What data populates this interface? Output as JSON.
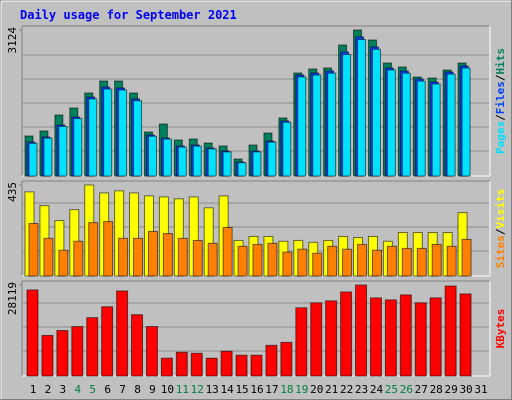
{
  "chart_data": [
    {
      "type": "bar",
      "title": "Daily usage for September 2021",
      "legend_separator": "/",
      "ylim": [
        0,
        3124
      ],
      "yticks": [
        3124
      ],
      "series": [
        {
          "name": "Hits",
          "color": "#00805c",
          "values": [
            856,
            963,
            1305,
            1455,
            1776,
            2033,
            2033,
            1776,
            941,
            1113,
            770,
            792,
            706,
            642,
            364,
            663,
            920,
            1241,
            2204,
            2290,
            2311,
            2803,
            3124,
            2910,
            2418,
            2332,
            2118,
            2097,
            2268,
            2418,
            null
          ]
        },
        {
          "name": "Files",
          "color": "#0040ff",
          "values": [
            727,
            834,
            1091,
            1262,
            1690,
            1904,
            1883,
            1648,
            877,
            813,
            642,
            663,
            599,
            535,
            300,
            535,
            749,
            1177,
            2161,
            2204,
            2247,
            2653,
            2974,
            2760,
            2311,
            2247,
            2075,
            2011,
            2225,
            2354,
            null
          ]
        },
        {
          "name": "Pages",
          "color": "#00e0ff",
          "values": [
            700,
            810,
            1060,
            1230,
            1650,
            1860,
            1840,
            1610,
            850,
            790,
            620,
            640,
            580,
            515,
            285,
            515,
            725,
            1150,
            2120,
            2160,
            2200,
            2600,
            2920,
            2710,
            2270,
            2200,
            2030,
            1970,
            2180,
            2310,
            null
          ]
        }
      ]
    },
    {
      "type": "bar",
      "legend_separator": "/",
      "ylim": [
        0,
        435
      ],
      "yticks": [
        435
      ],
      "series": [
        {
          "name": "Visits",
          "color": "#ffff00",
          "values": [
            402,
            336,
            265,
            317,
            435,
            397,
            407,
            397,
            383,
            378,
            369,
            378,
            326,
            383,
            170,
            189,
            189,
            166,
            170,
            161,
            170,
            189,
            184,
            189,
            166,
            208,
            208,
            208,
            208,
            303,
            null
          ]
        },
        {
          "name": "Sites",
          "color": "#ff8000",
          "values": [
            251,
            180,
            123,
            166,
            255,
            260,
            180,
            180,
            213,
            203,
            180,
            170,
            156,
            232,
            142,
            151,
            156,
            114,
            128,
            109,
            142,
            128,
            151,
            123,
            142,
            132,
            132,
            151,
            142,
            175,
            null
          ]
        }
      ]
    },
    {
      "type": "bar",
      "ylim": [
        0,
        28119
      ],
      "yticks": [
        28119
      ],
      "categories": [
        "1",
        "2",
        "3",
        "4",
        "5",
        "6",
        "7",
        "8",
        "9",
        "10",
        "11",
        "12",
        "13",
        "14",
        "15",
        "16",
        "17",
        "18",
        "19",
        "20",
        "21",
        "22",
        "23",
        "24",
        "25",
        "26",
        "27",
        "28",
        "29",
        "30",
        "31"
      ],
      "label_colors": [
        "#000000",
        "#000000",
        "#000000",
        "#008040",
        "#008040",
        "#000000",
        "#000000",
        "#000000",
        "#000000",
        "#000000",
        "#008040",
        "#008040",
        "#000000",
        "#000000",
        "#000000",
        "#000000",
        "#000000",
        "#008040",
        "#008040",
        "#000000",
        "#000000",
        "#000000",
        "#000000",
        "#000000",
        "#008040",
        "#008040",
        "#000000",
        "#000000",
        "#000000",
        "#000000",
        "#000000"
      ],
      "series": [
        {
          "name": "KBytes",
          "color": "#ff0000",
          "values": [
            26587,
            12530,
            14058,
            15280,
            18030,
            21392,
            26282,
            18947,
            15280,
            5501,
            7334,
            7029,
            5501,
            7640,
            6418,
            6418,
            9474,
            10390,
            21086,
            22614,
            23226,
            25976,
            28119,
            24142,
            23531,
            25059,
            22614,
            24142,
            27809,
            25365,
            null
          ]
        }
      ]
    }
  ]
}
